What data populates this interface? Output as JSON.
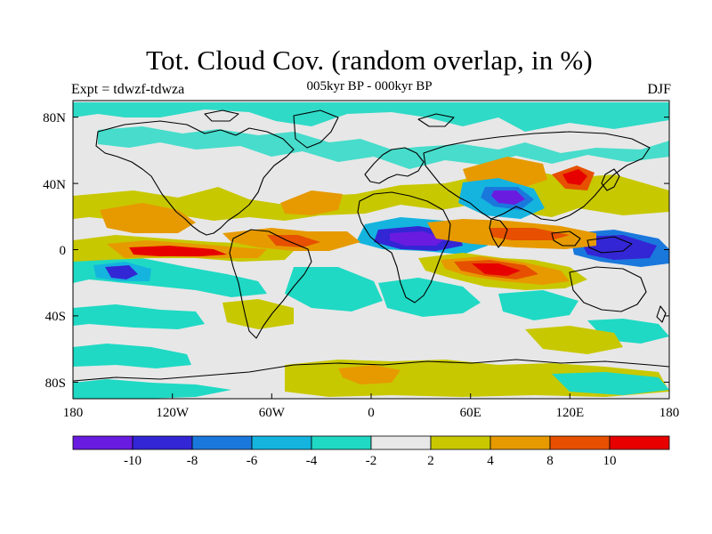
{
  "header": {
    "title": "Tot. Cloud Cov. (random overlap, in %)",
    "subtitle": "005kyr BP - 000kyr BP",
    "left_label": "Expt = tdwzf-tdwza",
    "right_label": "DJF"
  },
  "map": {
    "projection": "cylindrical equidistant",
    "lon_range": [
      -180,
      180
    ],
    "lat_range": [
      -90,
      90
    ],
    "lat_ticks": [
      "80N",
      "40N",
      "0",
      "40S",
      "80S"
    ],
    "lon_ticks": [
      "180",
      "120W",
      "60W",
      "0",
      "60E",
      "120E",
      "180"
    ],
    "colors": {
      "background_land_and_ocean": "#e7e7e7",
      "coast_lines": "#000000"
    }
  },
  "colorbar": {
    "colors": [
      "#6a1be0",
      "#3326d4",
      "#1a78dd",
      "#14b4df",
      "#1fd9c4",
      "#e8e8e8",
      "#c8c800",
      "#e69a00",
      "#e65000",
      "#e60000"
    ],
    "labels": [
      "-10",
      "-8",
      "-6",
      "-4",
      "-2",
      "2",
      "4",
      "8",
      "10"
    ]
  }
}
